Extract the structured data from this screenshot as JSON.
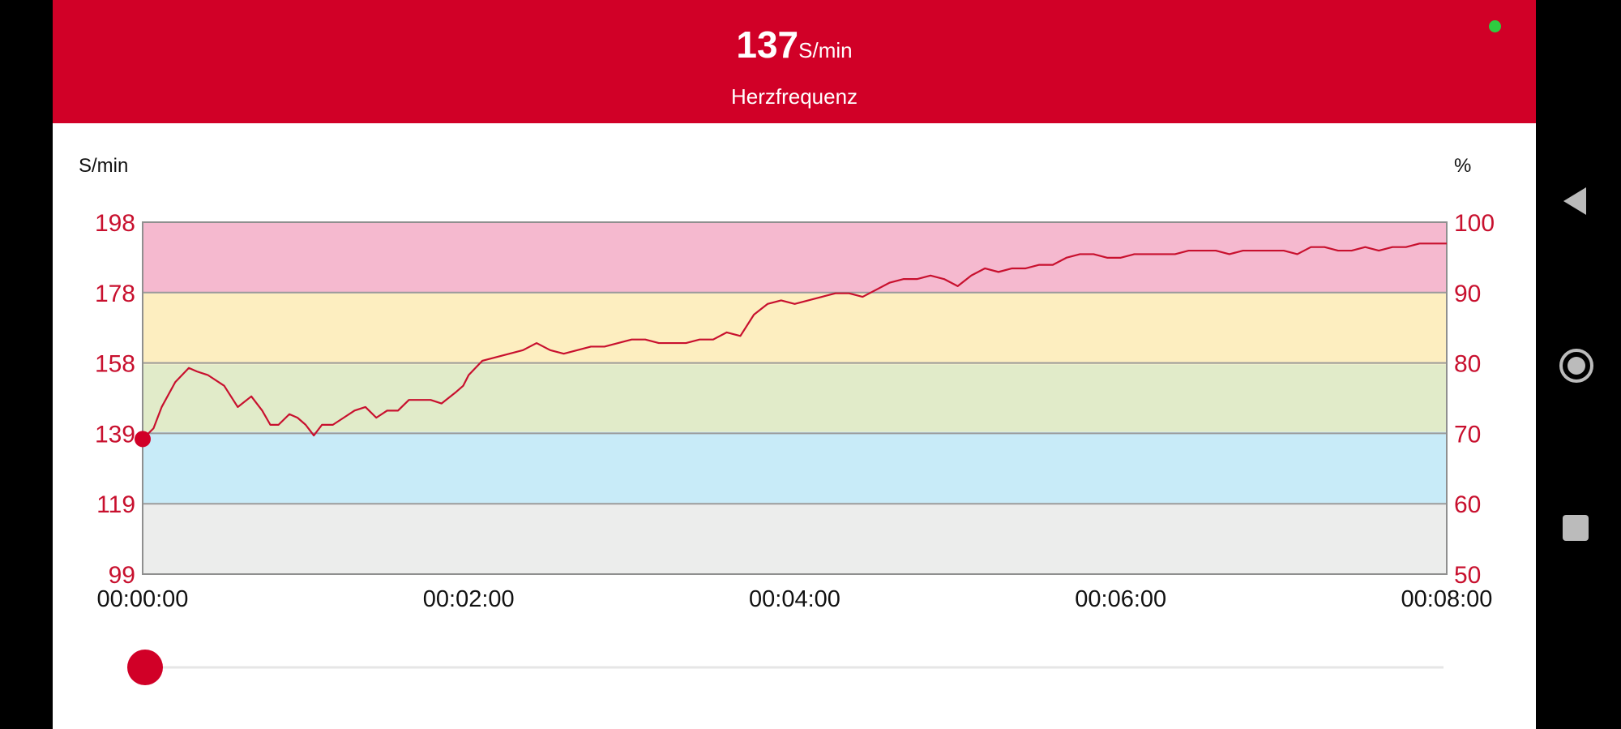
{
  "header": {
    "value": "137",
    "unit": "S/min",
    "label": "Herzfrequenz"
  },
  "chart_data": {
    "type": "line",
    "title": "",
    "left_axis_title": "S/min",
    "right_axis_title": "%",
    "y_ticks_left": [
      "198",
      "178",
      "158",
      "139",
      "119",
      "99"
    ],
    "y_ticks_right": [
      "100",
      "90",
      "80",
      "70",
      "60",
      "50"
    ],
    "x_ticks": [
      "00:00:00",
      "00:02:00",
      "00:04:00",
      "00:06:00",
      "00:08:00"
    ],
    "ylim": [
      99,
      198
    ],
    "xlim_seconds": [
      0,
      480
    ],
    "zones": [
      {
        "from": 99,
        "to": 119,
        "color": "#ecedec"
      },
      {
        "from": 119,
        "to": 139,
        "color": "#c8ebf8"
      },
      {
        "from": 139,
        "to": 158,
        "color": "#e1ebc9"
      },
      {
        "from": 158,
        "to": 178,
        "color": "#fdeec0"
      },
      {
        "from": 178,
        "to": 198,
        "color": "#f5b9cf"
      }
    ],
    "series": [
      {
        "color": "#c8102e",
        "x": [
          0,
          4,
          7,
          12,
          17,
          20,
          24,
          30,
          35,
          40,
          44,
          47,
          50,
          54,
          57,
          60,
          63,
          66,
          70,
          74,
          78,
          82,
          86,
          90,
          94,
          98,
          102,
          106,
          110,
          115,
          118,
          120,
          125,
          130,
          135,
          140,
          145,
          150,
          155,
          160,
          165,
          170,
          175,
          180,
          185,
          190,
          195,
          200,
          205,
          210,
          215,
          220,
          225,
          230,
          235,
          240,
          245,
          250,
          255,
          260,
          265,
          270,
          275,
          280,
          285,
          290,
          295,
          300,
          305,
          310,
          315,
          320,
          325,
          330,
          335,
          340,
          345,
          350,
          355,
          360,
          365,
          370,
          375,
          380,
          385,
          390,
          395,
          400,
          405,
          410,
          415,
          420,
          425,
          430,
          435,
          440,
          445,
          450,
          455,
          460,
          465,
          470,
          475,
          480
        ],
        "y": [
          137,
          140,
          146,
          153,
          157,
          156,
          155,
          152,
          146,
          149,
          145,
          141,
          141,
          144,
          143,
          141,
          138,
          141,
          141,
          143,
          145,
          146,
          143,
          145,
          145,
          148,
          148,
          148,
          147,
          150,
          152,
          155,
          159,
          160,
          161,
          162,
          164,
          162,
          161,
          162,
          163,
          163,
          164,
          165,
          165,
          164,
          164,
          164,
          165,
          165,
          167,
          166,
          172,
          175,
          176,
          175,
          176,
          177,
          178,
          178,
          177,
          179,
          181,
          182,
          182,
          183,
          182,
          180,
          183,
          185,
          184,
          185,
          185,
          186,
          186,
          188,
          189,
          189,
          188,
          188,
          189,
          189,
          189,
          189,
          190,
          190,
          190,
          189,
          190,
          190,
          190,
          190,
          189,
          191,
          191,
          190,
          190,
          191,
          190,
          191,
          191,
          192,
          192,
          192
        ]
      }
    ],
    "marker": {
      "x": 0,
      "y": 137
    },
    "slider_position": 0.0,
    "grid": false
  }
}
